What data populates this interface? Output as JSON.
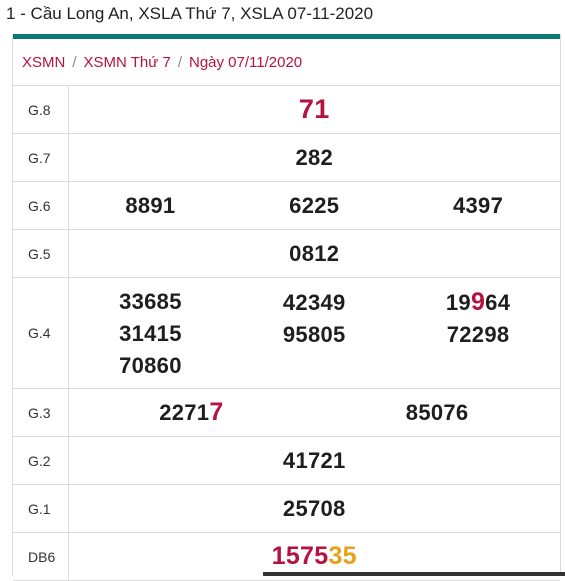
{
  "page_title": "1 - Cầu Long An, XSLA Thứ 7, XSLA 07-11-2020",
  "breadcrumb": [
    "XSMN",
    "XSMN Thứ 7",
    "Ngày 07/11/2020"
  ],
  "prizes": {
    "g8": {
      "label": "G.8",
      "value": "71"
    },
    "g7": {
      "label": "G.7",
      "value": "282"
    },
    "g6": {
      "label": "G.6",
      "values": [
        "8891",
        "6225",
        "4397"
      ]
    },
    "g5": {
      "label": "G.5",
      "value": "0812"
    },
    "g4": {
      "label": "G.4",
      "col1": [
        "33685",
        "31415",
        "70860"
      ],
      "col2": [
        "42349",
        "95805"
      ],
      "col3_first_a": "19",
      "col3_first_hl": "9",
      "col3_first_b": "64",
      "col3_second": "72298"
    },
    "g3": {
      "label": "G.3",
      "first_a": "2271",
      "first_hl": "7",
      "second": "85076"
    },
    "g2": {
      "label": "G.2",
      "value": "41721"
    },
    "g1": {
      "label": "G.1",
      "value": "25708"
    },
    "db": {
      "label": "DB6",
      "value_a": "1575",
      "value_b": "35"
    }
  },
  "colors": {
    "accent_bar": "#0b7a72",
    "highlight_red": "#b5123f",
    "highlight_gold": "#e6a11c"
  }
}
